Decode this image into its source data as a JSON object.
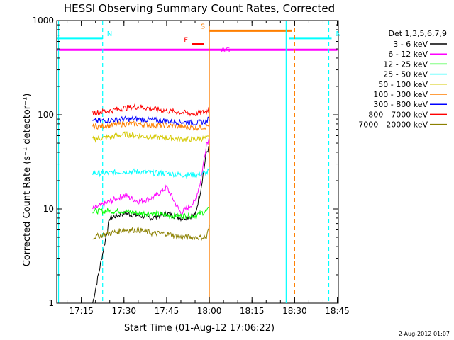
{
  "chart_data": {
    "type": "line",
    "title": "HESSI Observing Summary Count Rates, Corrected",
    "xlabel": "Start Time (01-Aug-12 17:06:22)",
    "ylabel": "Corrected Count Rate (s⁻¹ detector⁻¹)",
    "yscale": "log",
    "ylim": [
      1,
      1000
    ],
    "xlim_minutes_after_start": [
      0,
      99
    ],
    "x_ticks": [
      "17:15",
      "17:30",
      "17:45",
      "18:00",
      "18:15",
      "18:30",
      "18:45"
    ],
    "y_ticks": [
      "1",
      "10",
      "100",
      "1000"
    ],
    "legend_title": "Det 1,3,5,6,7,9",
    "legend_position": "right",
    "series": [
      {
        "name": "3 - 6 keV",
        "color": "#000000",
        "x": [
          "17:19",
          "17:25",
          "17:30",
          "17:35",
          "17:40",
          "17:45",
          "17:50",
          "17:55",
          "17:57",
          "17:59",
          "18:00"
        ],
        "values": [
          1.0,
          8.0,
          9.0,
          8.5,
          8.0,
          9.0,
          8.0,
          8.5,
          16,
          40,
          45
        ]
      },
      {
        "name": "6 - 12 keV",
        "color": "#ff00ff",
        "x": [
          "17:19",
          "17:25",
          "17:30",
          "17:35",
          "17:40",
          "17:45",
          "17:50",
          "17:55",
          "17:57",
          "17:59",
          "18:00"
        ],
        "values": [
          10,
          12,
          14,
          12,
          13,
          17,
          9,
          12,
          20,
          50,
          55
        ]
      },
      {
        "name": "12 - 25 keV",
        "color": "#00ff00",
        "x": [
          "17:19",
          "17:25",
          "17:30",
          "17:35",
          "17:40",
          "17:45",
          "17:50",
          "17:55",
          "17:59",
          "18:00"
        ],
        "values": [
          9.5,
          9.5,
          9.5,
          9.0,
          9.0,
          8.5,
          8.5,
          8.5,
          9.5,
          10
        ]
      },
      {
        "name": "25 - 50 keV",
        "color": "#00ffff",
        "x": [
          "17:19",
          "17:25",
          "17:30",
          "17:35",
          "17:40",
          "17:45",
          "17:50",
          "17:55",
          "17:59",
          "18:00"
        ],
        "values": [
          24,
          24,
          25,
          25,
          24,
          24,
          23,
          23,
          24,
          26
        ]
      },
      {
        "name": "50 - 100 keV",
        "color": "#d4c800",
        "x": [
          "17:19",
          "17:25",
          "17:30",
          "17:35",
          "17:40",
          "17:45",
          "17:50",
          "17:55",
          "17:59",
          "18:00"
        ],
        "values": [
          55,
          58,
          62,
          60,
          58,
          57,
          55,
          55,
          56,
          58
        ]
      },
      {
        "name": "100 - 300 keV",
        "color": "#ff7f00",
        "x": [
          "17:19",
          "17:25",
          "17:30",
          "17:35",
          "17:40",
          "17:45",
          "17:50",
          "17:55",
          "17:59",
          "18:00"
        ],
        "values": [
          75,
          77,
          80,
          80,
          78,
          77,
          75,
          73,
          75,
          80
        ]
      },
      {
        "name": "300 - 800 keV",
        "color": "#0000ff",
        "x": [
          "17:19",
          "17:25",
          "17:30",
          "17:35",
          "17:40",
          "17:45",
          "17:50",
          "17:55",
          "17:59",
          "18:00"
        ],
        "values": [
          85,
          88,
          90,
          90,
          88,
          86,
          84,
          82,
          85,
          92
        ]
      },
      {
        "name": "800 - 7000 keV",
        "color": "#ff0000",
        "x": [
          "17:19",
          "17:25",
          "17:30",
          "17:35",
          "17:40",
          "17:45",
          "17:50",
          "17:55",
          "17:59",
          "18:00"
        ],
        "values": [
          105,
          110,
          118,
          122,
          116,
          110,
          106,
          102,
          108,
          120
        ]
      },
      {
        "name": "7000 - 20000 keV",
        "color": "#8b8000",
        "x": [
          "17:19",
          "17:25",
          "17:30",
          "17:35",
          "17:40",
          "17:45",
          "17:50",
          "17:55",
          "17:59",
          "18:00"
        ],
        "values": [
          5.0,
          5.5,
          6.0,
          6.0,
          5.5,
          5.5,
          5.0,
          5.0,
          5.0,
          6.5
        ]
      }
    ],
    "flag_bars": [
      {
        "label": "N",
        "color": "#00ffff",
        "start": "17:06:22",
        "end": "17:22:30",
        "level": 650
      },
      {
        "label": "N",
        "color": "#00ffff",
        "start": "18:28",
        "end": "18:43",
        "level": 650
      },
      {
        "label": "S",
        "color": "#ff7f00",
        "start": "18:00",
        "end": "18:29",
        "level": 780
      },
      {
        "label": "F",
        "color": "#ff0000",
        "start": "17:54",
        "end": "17:58",
        "level": 560
      },
      {
        "label": "AS",
        "color": "#ff00ff",
        "start": "17:06:22",
        "end": "18:45",
        "level": 490
      }
    ],
    "vertical_markers": [
      {
        "time": "17:07",
        "color": "#00ffff",
        "style": "solid"
      },
      {
        "time": "17:22:30",
        "color": "#00ffff",
        "style": "dashed"
      },
      {
        "time": "18:00",
        "color": "#ff7f00",
        "style": "solid"
      },
      {
        "time": "18:27",
        "color": "#00ffff",
        "style": "solid"
      },
      {
        "time": "18:30",
        "color": "#ff7f00",
        "style": "dashed"
      },
      {
        "time": "18:42",
        "color": "#00ffff",
        "style": "dashed"
      }
    ],
    "grid": false,
    "timestamp": "2-Aug-2012 01:07"
  }
}
